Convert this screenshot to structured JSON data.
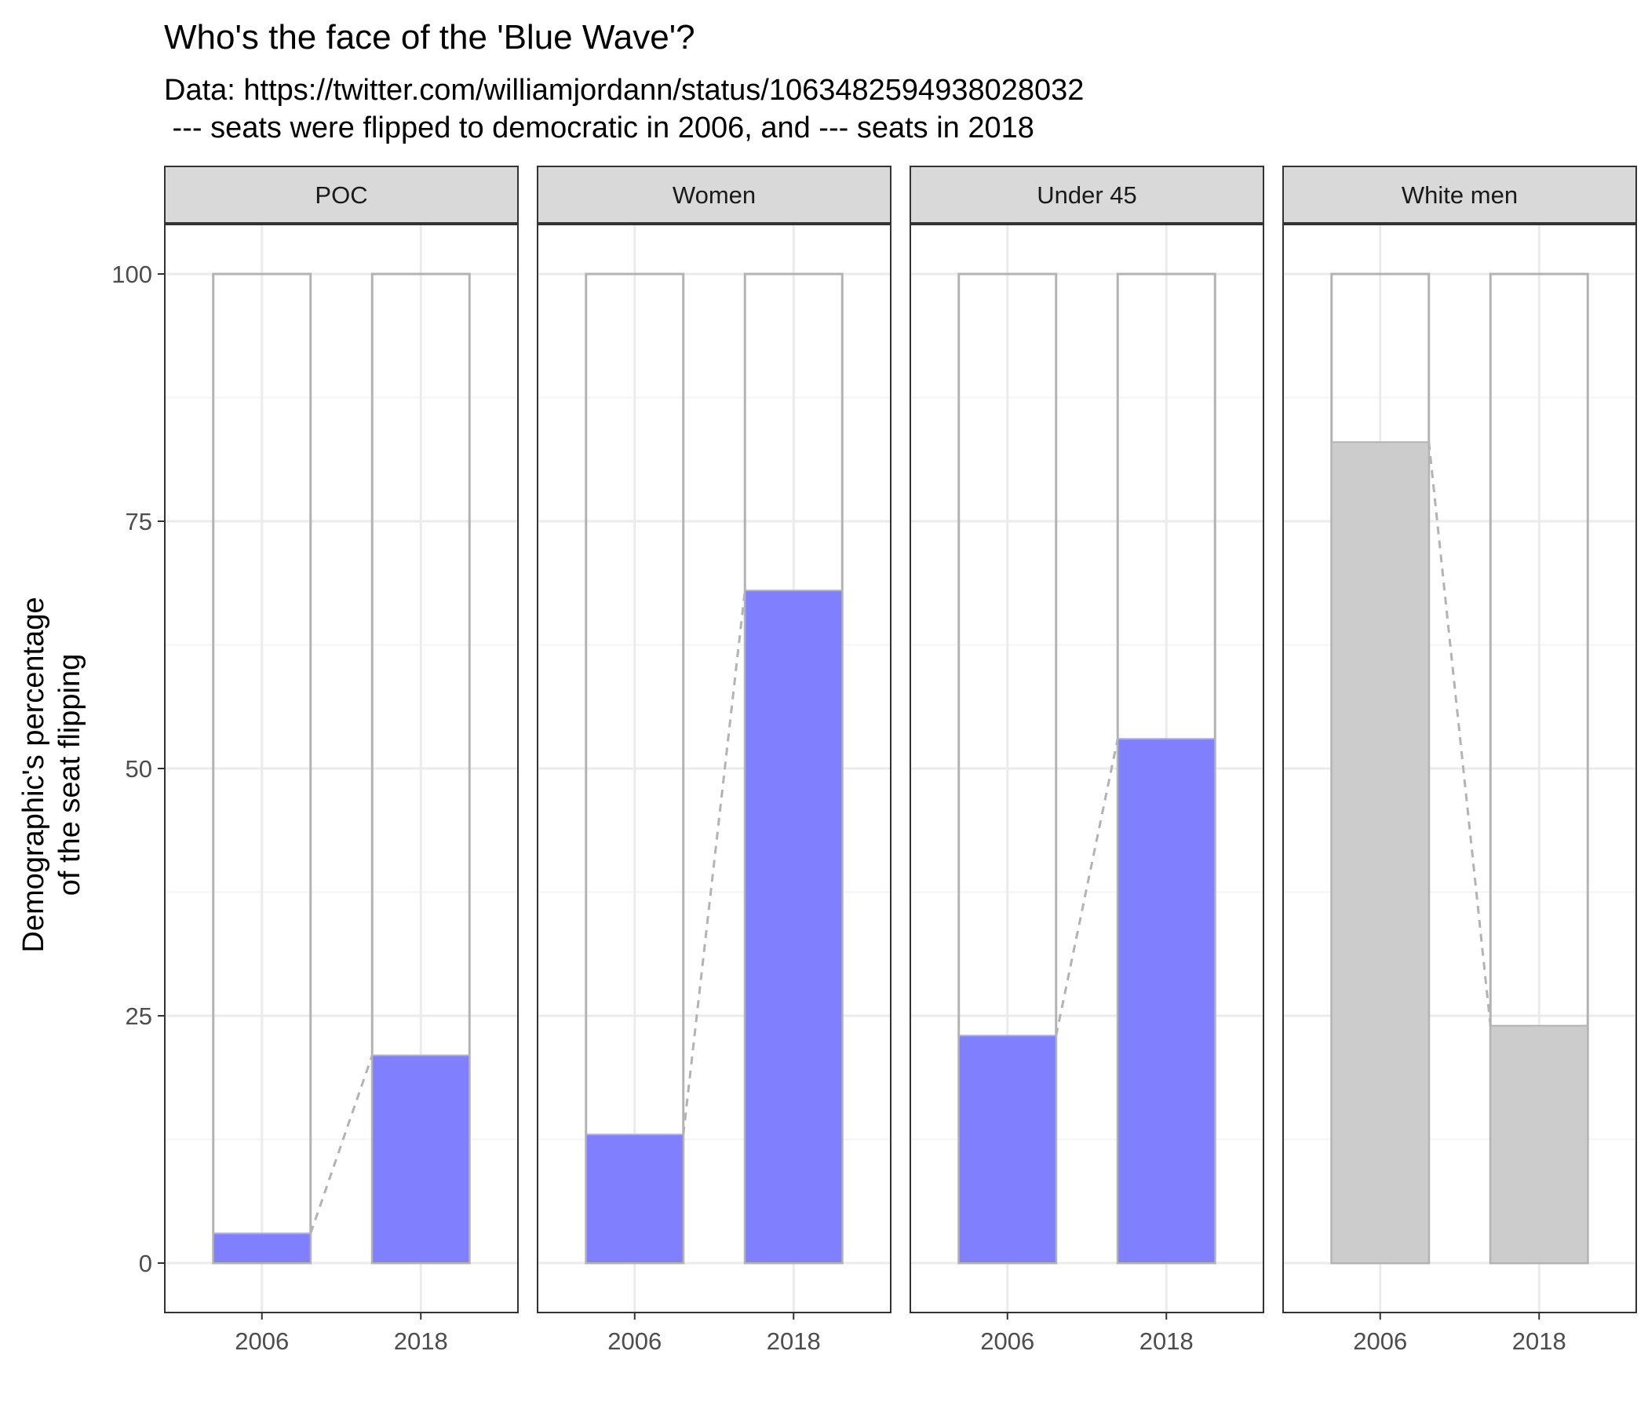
{
  "chart_data": {
    "type": "bar",
    "title": "Who's the face of the 'Blue Wave'?",
    "subtitle_lines": [
      "Data: https://twitter.com/williamjordann/status/1063482594938028032",
      " --- seats were flipped to democratic in 2006, and --- seats in 2018"
    ],
    "ylabel_lines": [
      "Demographic's percentage",
      "of the seat flipping"
    ],
    "xlabel": "",
    "categories": [
      "2006",
      "2018"
    ],
    "ylim": [
      -5,
      105
    ],
    "y_ticks": [
      0,
      25,
      50,
      75,
      100
    ],
    "y_tick_labels": [
      "0",
      "25",
      "50",
      "75",
      "100"
    ],
    "reference_value": 100,
    "grid": true,
    "connector_line": "dashed",
    "facets": [
      {
        "name": "POC",
        "values": [
          3,
          21
        ],
        "fill": "#8080ff"
      },
      {
        "name": "Women",
        "values": [
          13,
          68
        ],
        "fill": "#8080ff"
      },
      {
        "name": "Under 45",
        "values": [
          23,
          53
        ],
        "fill": "#8080ff"
      },
      {
        "name": "White men",
        "values": [
          83,
          24
        ],
        "fill": "#cccccc"
      }
    ],
    "colors": {
      "bar_outline": "#b3b3b3",
      "connector": "#b3b3b3",
      "grid_major": "#ebebeb",
      "grid_minor": "#f4f4f4",
      "strip_bg": "#d9d9d9",
      "panel_border": "#333333"
    }
  }
}
